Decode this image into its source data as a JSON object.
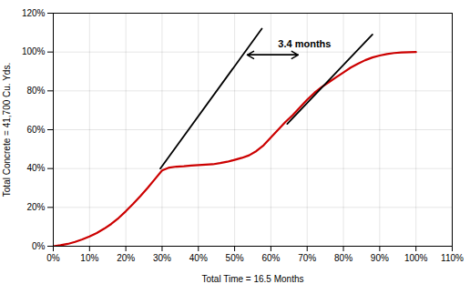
{
  "chart_data": {
    "type": "line",
    "xlabel": "Total Time = 16.5 Months",
    "ylabel": "Total Concrete = 41,700 Cu. Yds.",
    "x": [
      0.0,
      0.02,
      0.04,
      0.06,
      0.08,
      0.1,
      0.12,
      0.14,
      0.16,
      0.18,
      0.2,
      0.22,
      0.24,
      0.26,
      0.28,
      0.3,
      0.32,
      0.34,
      0.36,
      0.38,
      0.4,
      0.42,
      0.44,
      0.46,
      0.48,
      0.5,
      0.52,
      0.54,
      0.56,
      0.58,
      0.6,
      0.62,
      0.64,
      0.66,
      0.68,
      0.7,
      0.72,
      0.74,
      0.76,
      0.78,
      0.8,
      0.82,
      0.84,
      0.86,
      0.88,
      0.9,
      0.92,
      0.94,
      0.96,
      0.98,
      1.0
    ],
    "values": [
      0.0,
      0.005,
      0.012,
      0.022,
      0.035,
      0.05,
      0.068,
      0.09,
      0.115,
      0.145,
      0.18,
      0.218,
      0.258,
      0.3,
      0.345,
      0.39,
      0.405,
      0.41,
      0.412,
      0.415,
      0.418,
      0.42,
      0.422,
      0.428,
      0.435,
      0.445,
      0.455,
      0.468,
      0.49,
      0.52,
      0.56,
      0.6,
      0.64,
      0.675,
      0.715,
      0.755,
      0.79,
      0.82,
      0.845,
      0.87,
      0.895,
      0.92,
      0.94,
      0.958,
      0.972,
      0.982,
      0.99,
      0.995,
      0.998,
      0.999,
      1.0
    ],
    "color": "#cc0000",
    "xlim": [
      0,
      1.1
    ],
    "ylim": [
      0,
      1.2
    ],
    "xticks": [
      {
        "value": 0,
        "label": "0%"
      },
      {
        "value": 0.1,
        "label": "10%"
      },
      {
        "value": 0.2,
        "label": "20%"
      },
      {
        "value": 0.3,
        "label": "30%"
      },
      {
        "value": 0.4,
        "label": "40%"
      },
      {
        "value": 0.5,
        "label": "50%"
      },
      {
        "value": 0.6,
        "label": "60%"
      },
      {
        "value": 0.7,
        "label": "70%"
      },
      {
        "value": 0.8,
        "label": "80%"
      },
      {
        "value": 0.9,
        "label": "90%"
      },
      {
        "value": 1.0,
        "label": "100%"
      },
      {
        "value": 1.1,
        "label": "110%"
      }
    ],
    "yticks": [
      {
        "value": 0,
        "label": "0%"
      },
      {
        "value": 0.2,
        "label": "20%"
      },
      {
        "value": 0.4,
        "label": "40%"
      },
      {
        "value": 0.6,
        "label": "60%"
      },
      {
        "value": 0.8,
        "label": "80%"
      },
      {
        "value": 1.0,
        "label": "100%"
      },
      {
        "value": 1.2,
        "label": "120%"
      }
    ],
    "grid": true,
    "reference_lines": [
      {
        "x": [
          0.295,
          0.575
        ],
        "y": [
          0.4,
          1.12
        ],
        "color": "black"
      },
      {
        "x": [
          0.645,
          0.88
        ],
        "y": [
          0.63,
          1.09
        ],
        "color": "black"
      }
    ],
    "arrow": {
      "x1": 0.535,
      "x2": 0.675,
      "y": 0.985,
      "color": "black"
    },
    "annotations": [
      {
        "text": "3.4 months",
        "x": 0.62,
        "y": 1.025
      }
    ]
  }
}
